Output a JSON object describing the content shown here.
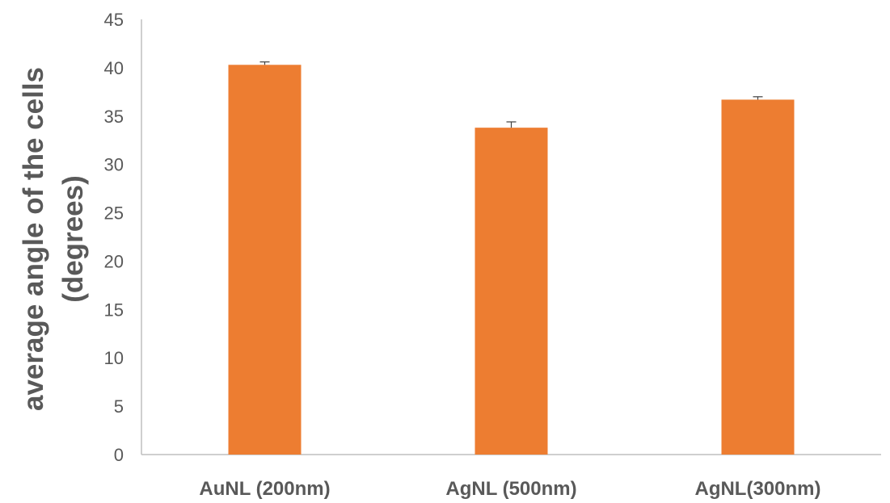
{
  "chart_data": {
    "type": "bar",
    "categories": [
      "AuNL (200nm)",
      "AgNL (500nm)",
      "AgNL(300nm)"
    ],
    "values": [
      40.3,
      33.8,
      36.7
    ],
    "error": [
      0.3,
      0.6,
      0.3
    ],
    "ylabel_lines": [
      "average angle of the cells",
      "(degrees)"
    ],
    "ylim": [
      0,
      45
    ],
    "yticks": [
      0,
      5,
      10,
      15,
      20,
      25,
      30,
      35,
      40,
      45
    ],
    "grid": false,
    "bar_color": "#ED7D31",
    "axis_color": "#595959",
    "error_color": "#404040"
  }
}
